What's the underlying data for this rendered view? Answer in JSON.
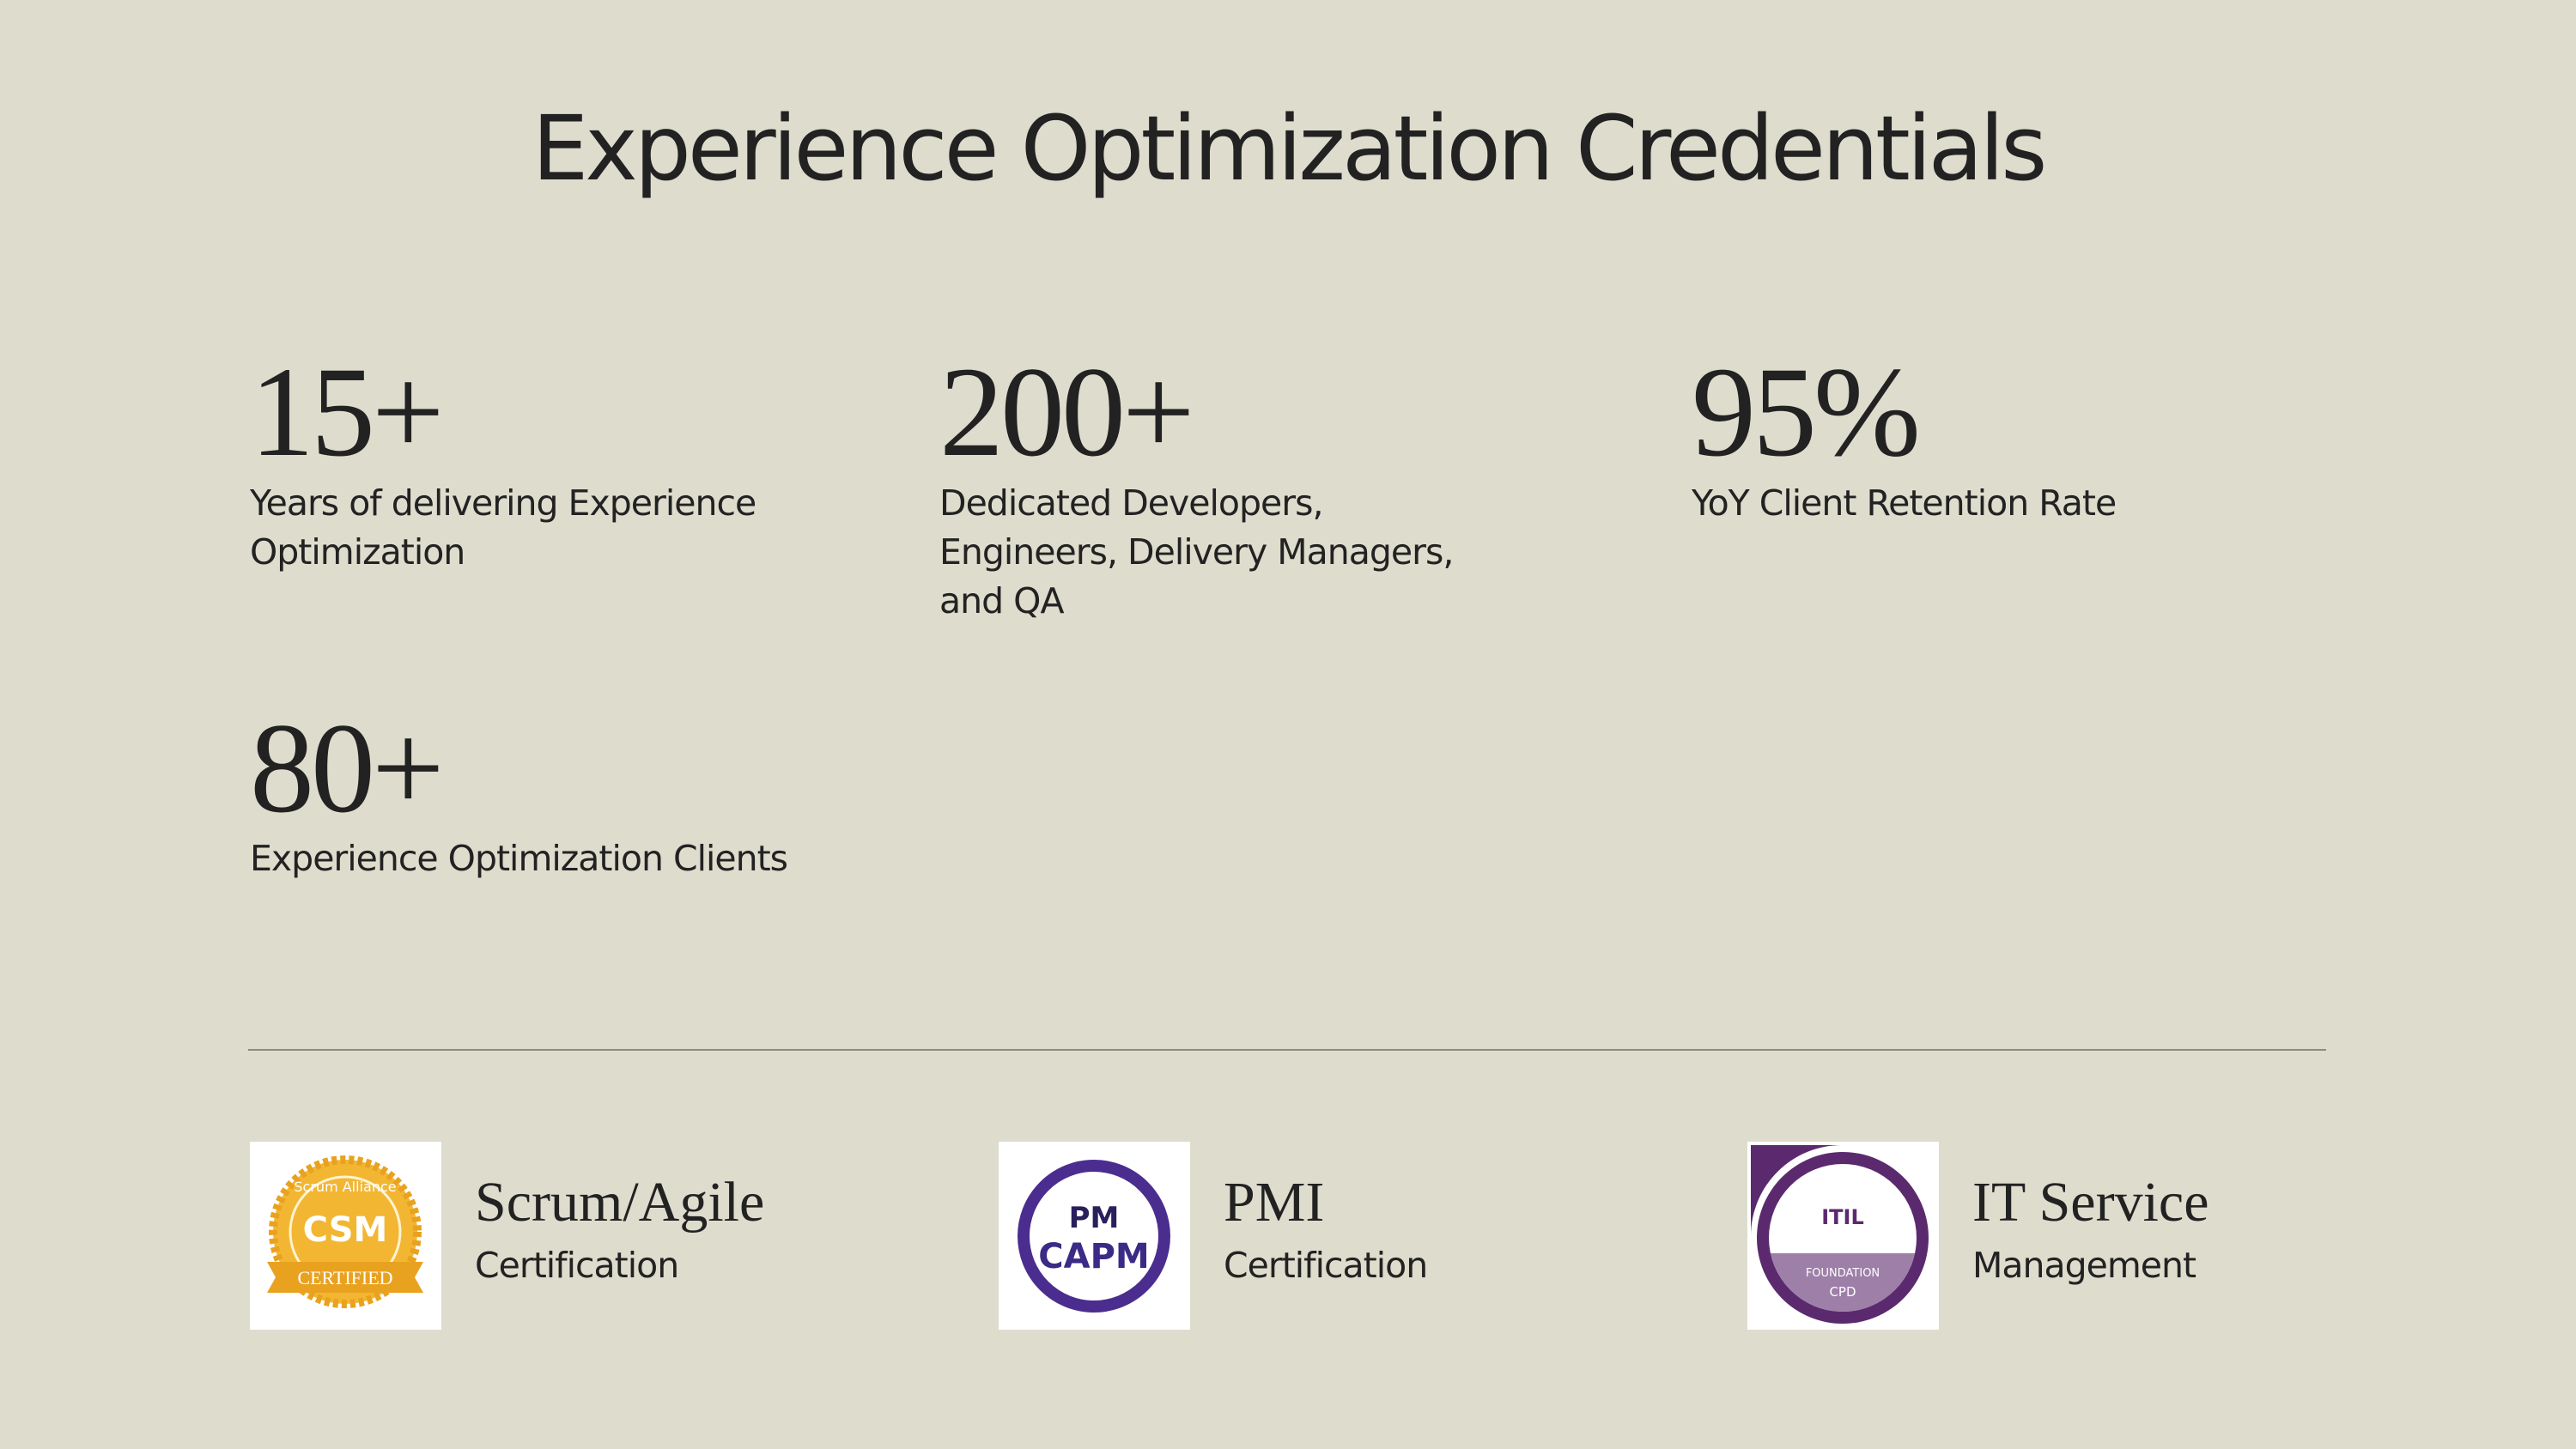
{
  "title": "Experience Optimization Credentials",
  "stats": [
    {
      "value": "15+",
      "label": "Years of delivering Experience Optimization"
    },
    {
      "value": "200+",
      "label": "Dedicated Developers, Engineers, Delivery Managers, and QA"
    },
    {
      "value": "95%",
      "label": "YoY Client Retention Rate"
    },
    {
      "value": "80+",
      "label": "Experience Optimization Clients"
    }
  ],
  "certifications": [
    {
      "badge": [
        "Scrum Alliance",
        "CSM",
        "CERTIFIED"
      ],
      "title": "Scrum/Agile",
      "subtitle": "Certification"
    },
    {
      "badge": [
        "PM",
        "CAPM"
      ],
      "title": "PMI",
      "subtitle": "Certification"
    },
    {
      "badge": [
        "ITIL",
        "FOUNDATION",
        "CPD"
      ],
      "title": "IT Service",
      "subtitle": "Management"
    }
  ]
}
